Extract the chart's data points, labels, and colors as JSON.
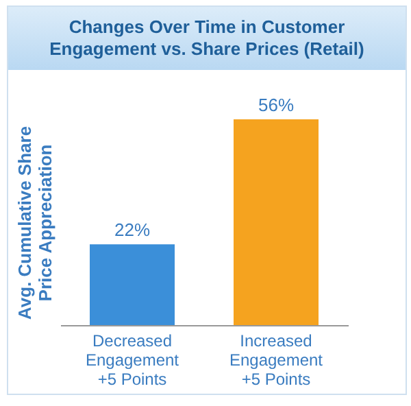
{
  "chart_data": {
    "type": "bar",
    "title": "Changes Over Time in Customer Engagement vs. Share Prices (Retail)",
    "ylabel": "Avg. Cumulative Share Price Appreciation",
    "categories": [
      "Decreased Engagement +5 Points",
      "Increased Engagement +5 Points"
    ],
    "values": [
      22,
      56
    ],
    "colors": [
      "#3b8fd9",
      "#f5a31f"
    ],
    "value_labels": [
      "22%",
      "56%"
    ]
  }
}
